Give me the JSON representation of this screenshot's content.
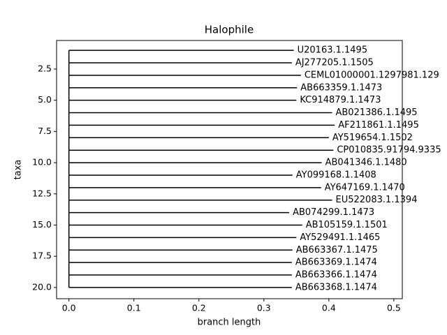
{
  "chart_data": {
    "type": "tree",
    "title": "Halophile",
    "xlabel": "branch length",
    "ylabel": "taxa",
    "taxa": [
      "U20163.1.1495",
      "AJ277205.1.1505",
      "CEML01000001.1297981.129",
      "AB663359.1.1473",
      "KC914879.1.1473",
      "AB021386.1.1495",
      "AF211861.1.1495",
      "AY519654.1.1502",
      "CP010835.91794.9335",
      "AB041346.1.1480",
      "AY099168.1.1408",
      "AY647169.1.1470",
      "EU522083.1.1394",
      "AB074299.1.1473",
      "AB105159.1.1501",
      "AY529491.1.1465",
      "AB663367.1.1475",
      "AB663369.1.1474",
      "AB663366.1.1474",
      "AB663368.1.1474"
    ],
    "y": [
      1,
      2,
      3,
      4,
      5,
      6,
      7,
      8,
      9,
      10,
      11,
      12,
      13,
      14,
      15,
      16,
      17,
      18,
      19,
      20
    ],
    "values": [
      0.346,
      0.343,
      0.357,
      0.351,
      0.35,
      0.405,
      0.409,
      0.4,
      0.407,
      0.389,
      0.344,
      0.388,
      0.405,
      0.339,
      0.359,
      0.35,
      0.344,
      0.343,
      0.343,
      0.343
    ],
    "color": "#000000",
    "xlim": [
      -0.019,
      0.513
    ],
    "xticks": [
      {
        "value": 0,
        "label": "0.0"
      },
      0.1,
      0.2,
      0.3,
      0.4,
      0.5
    ],
    "ylim": [
      20.9,
      0.21
    ],
    "yticks": [
      2.5,
      {
        "value": 5,
        "label": "5.0"
      },
      7.5,
      {
        "value": 10,
        "label": "10.0"
      },
      12.5,
      {
        "value": 15,
        "label": "15.0"
      },
      17.5,
      {
        "value": 20,
        "label": "20.0"
      }
    ]
  }
}
